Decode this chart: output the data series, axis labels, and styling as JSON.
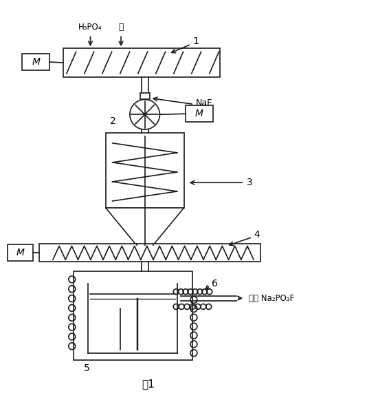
{
  "title": "图1",
  "label_1": "1",
  "label_2": "2",
  "label_3": "3",
  "label_4": "4",
  "label_5": "5",
  "label_6": "6",
  "label_M": "M",
  "label_H3PO4": "H₃PO₄",
  "label_jian": "筱",
  "label_NaF": "NaF",
  "label_product": "产品 Na₂PO₃F",
  "bg_color": "#ffffff",
  "line_color": "#1a1a1a"
}
